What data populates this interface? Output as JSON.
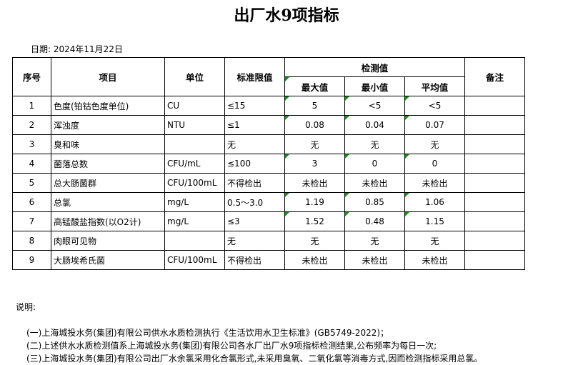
{
  "title": "出厂水9项指标",
  "date": "日期: 2024年11月22日",
  "headers": {
    "no": "序号",
    "item": "项目",
    "unit": "单位",
    "limit": "标准限值",
    "measured": "检测值",
    "max": "最大值",
    "min": "最小值",
    "avg": "平均值",
    "note": "备注"
  },
  "rows": [
    {
      "no": "1",
      "item": "色度(铂钴色度单位)",
      "unit": "CU",
      "limit": "≤15",
      "max": "5",
      "min": "<5",
      "avg": "<5"
    },
    {
      "no": "2",
      "item": "浑浊度",
      "unit": "NTU",
      "limit": "≤1",
      "max": "0.08",
      "min": "0.04",
      "avg": "0.07"
    },
    {
      "no": "3",
      "item": "臭和味",
      "unit": "",
      "limit": "无",
      "max": "无",
      "min": "无",
      "avg": "无"
    },
    {
      "no": "4",
      "item": "菌落总数",
      "unit": "CFU/mL",
      "limit": "≤100",
      "max": "3",
      "min": "0",
      "avg": "0"
    },
    {
      "no": "5",
      "item": "总大肠菌群",
      "unit": "CFU/100mL",
      "limit": "不得检出",
      "max": "未检出",
      "min": "未检出",
      "avg": "未检出"
    },
    {
      "no": "6",
      "item": "总氯",
      "unit": "mg/L",
      "limit": "0.5～3.0",
      "max": "1.19",
      "min": "0.85",
      "avg": "1.06"
    },
    {
      "no": "7",
      "item": "高锰酸盐指数(以O2计)",
      "unit": "mg/L",
      "limit": "≤3",
      "max": "1.52",
      "min": "0.48",
      "avg": "1.15"
    },
    {
      "no": "8",
      "item": "肉眼可见物",
      "unit": "",
      "limit": "无",
      "max": "无",
      "min": "无",
      "avg": "无"
    },
    {
      "no": "9",
      "item": "大肠埃希氏菌",
      "unit": "CFU/100mL",
      "limit": "不得检出",
      "max": "未检出",
      "min": "未检出",
      "avg": "未检出"
    }
  ],
  "notes": {
    "label": "说明:",
    "lines": [
      "(一)上海城投水务(集团)有限公司供水水质检测执行《生活饮用水卫生标准》(GB5749-2022)；",
      "(二)上述供水水质检测值系上海城投水务(集团)有限公司各水厂出厂水9项指标检测结果,公布频率为每日一次;",
      "(三)上海城投水务(集团)有限公司出厂水余氯采用化合氯形式,未采用臭氧、二氧化氯等消毒方式,因而检测指标采用总氯。"
    ]
  },
  "colors": {
    "error_marker": "#1a8a1a"
  }
}
